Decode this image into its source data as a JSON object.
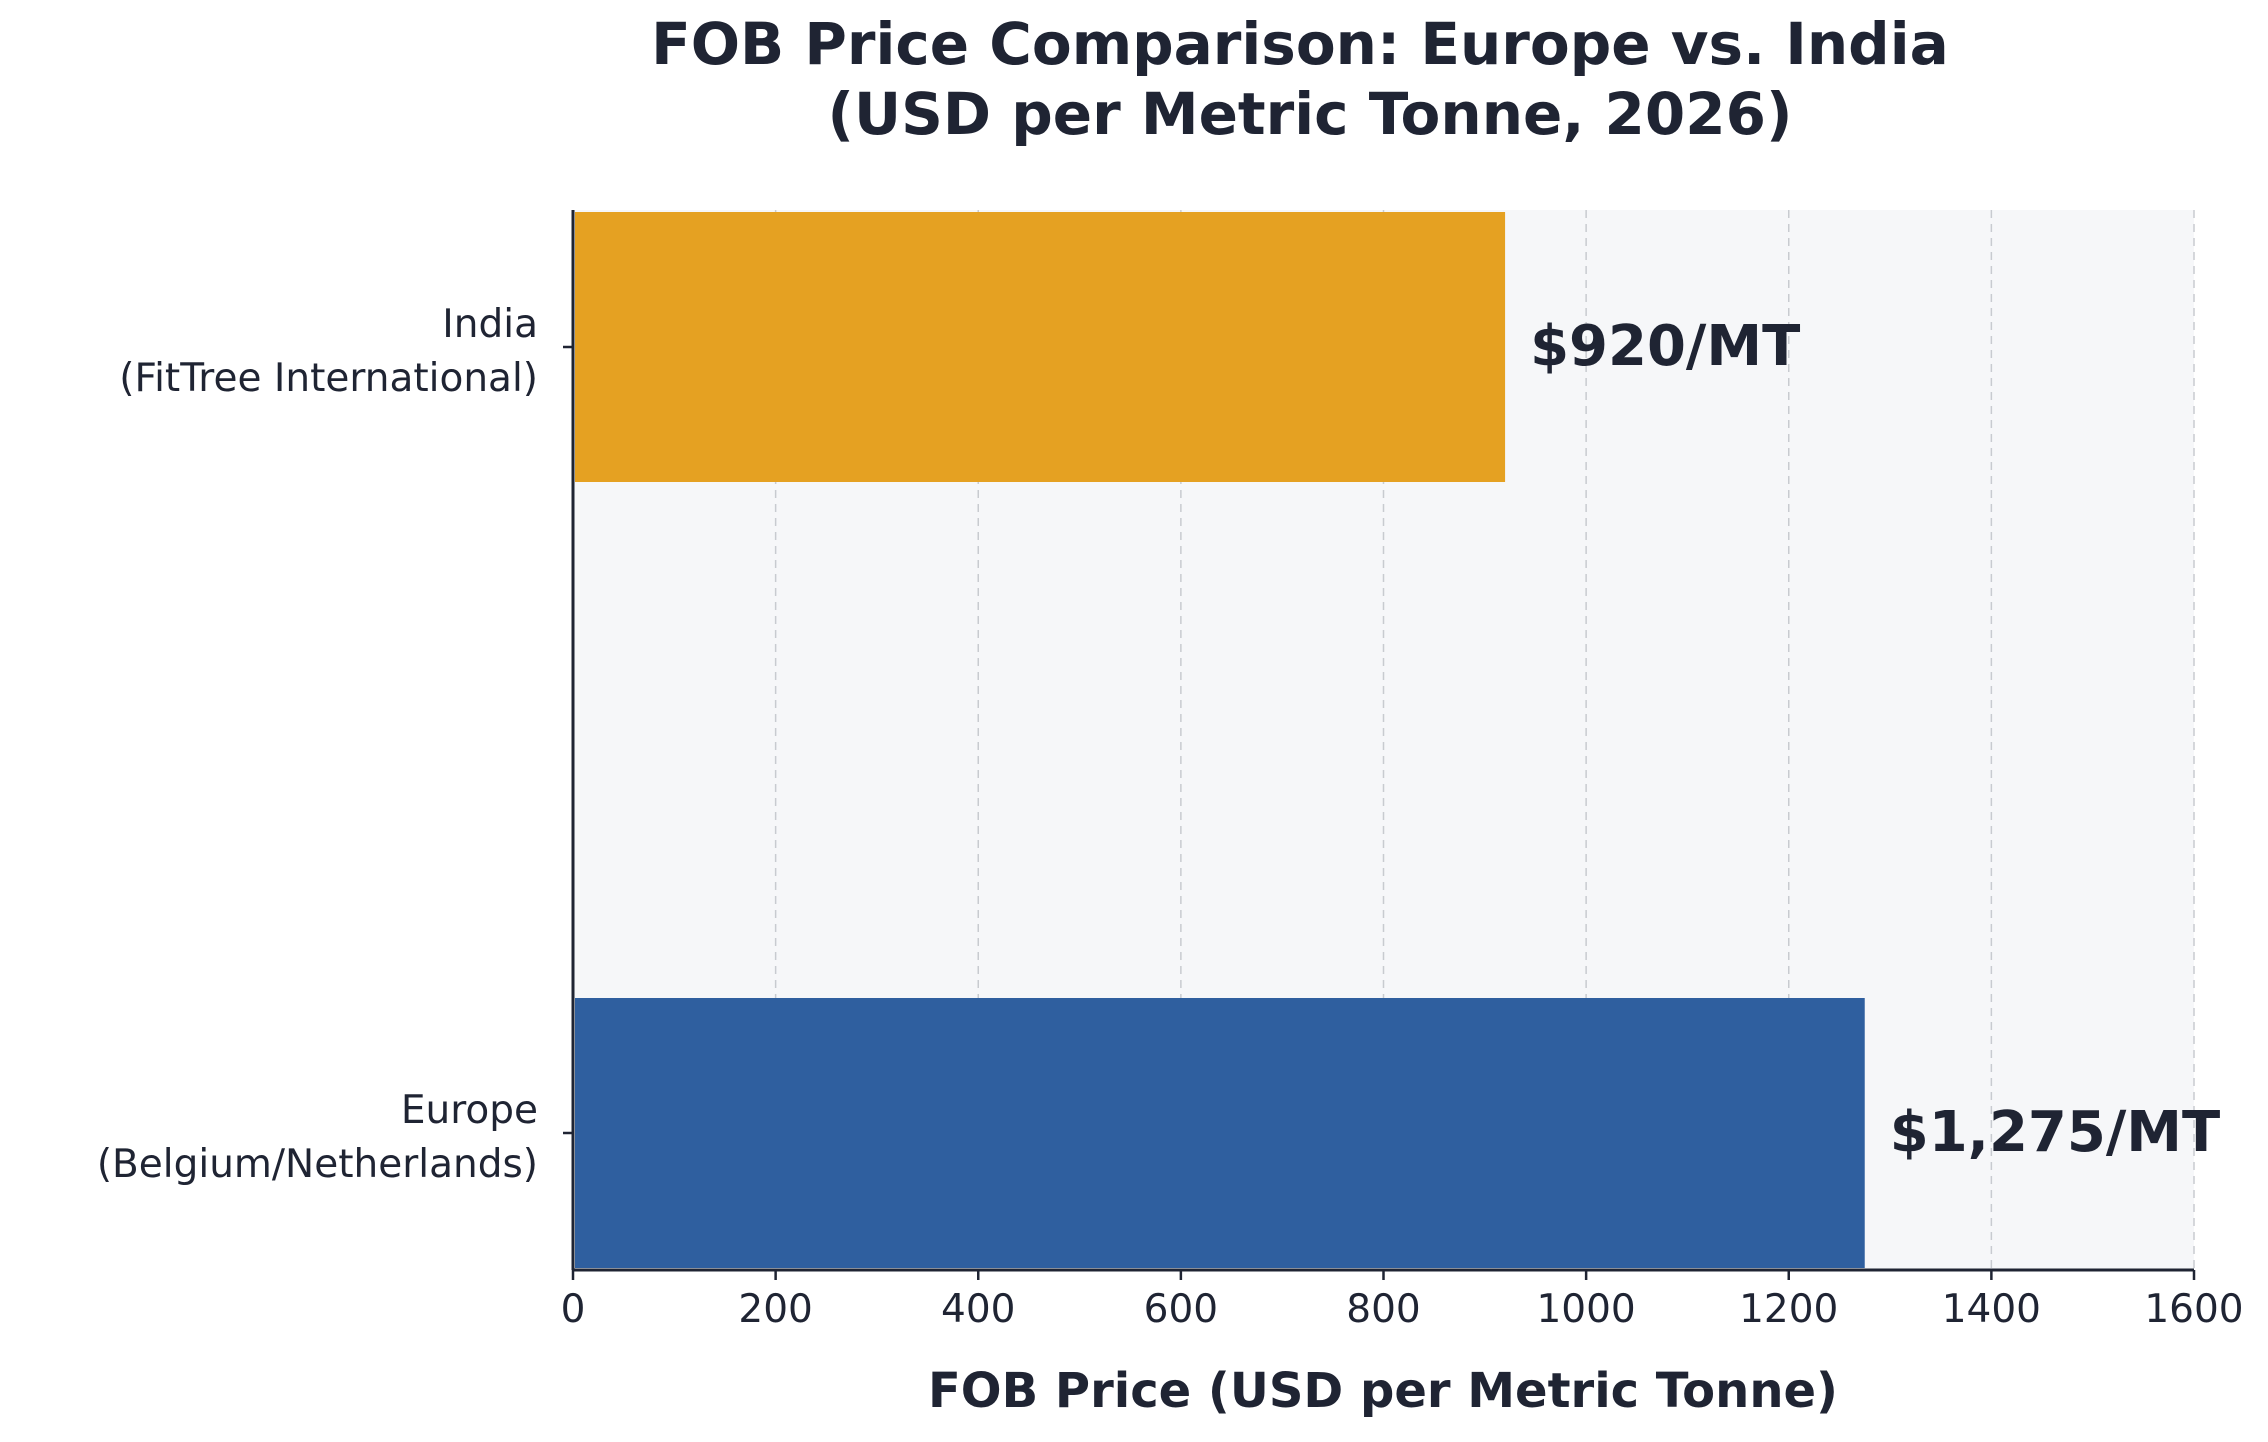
{
  "chart_data": {
    "type": "bar",
    "orientation": "horizontal",
    "title_lines": [
      "FOB Price Comparison: Europe vs. India",
      "(USD per Metric Tonne, 2026)"
    ],
    "xlabel": "FOB Price (USD per Metric Tonne)",
    "ylabel": "",
    "xlim": [
      0,
      1600
    ],
    "x_ticks": [
      0,
      200,
      400,
      600,
      800,
      1000,
      1200,
      1400,
      1600
    ],
    "x_tick_labels": [
      "0",
      "200",
      "400",
      "600",
      "800",
      "1000",
      "1200",
      "1400",
      "1600"
    ],
    "grid": "vertical dashed",
    "bars": [
      {
        "name": "india",
        "label_lines": [
          "India",
          "(FitTree International)"
        ],
        "value": 920,
        "value_label": "$920/MT",
        "color": "#e5a122"
      },
      {
        "name": "europe",
        "label_lines": [
          "Europe",
          "(Belgium/Netherlands)"
        ],
        "value": 1275,
        "value_label": "$1,275/MT",
        "color": "#2f5f9f"
      }
    ],
    "colors": {
      "plot_background": "#f6f7f9",
      "grid": "#c8cbd0",
      "axis": "#1f2433",
      "text": "#1f2433"
    }
  }
}
